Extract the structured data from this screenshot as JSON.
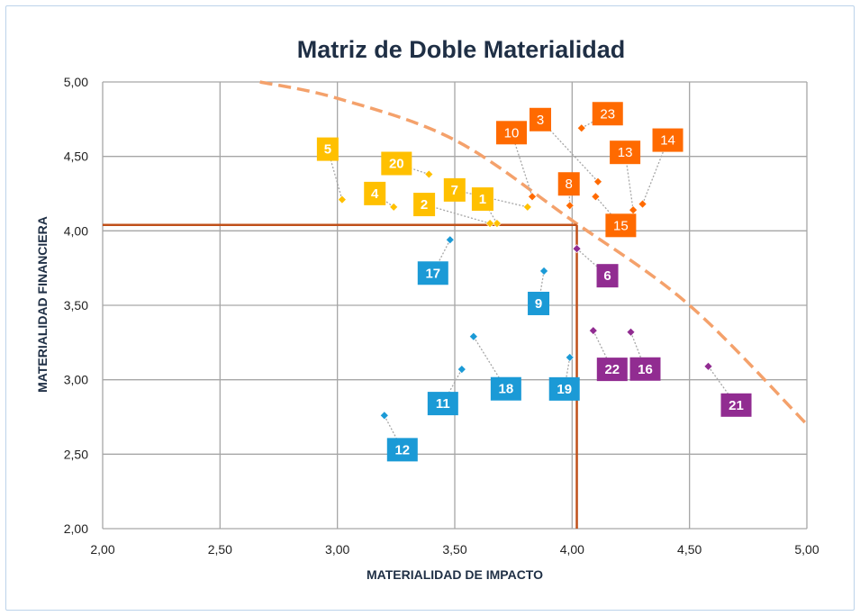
{
  "chart_data": {
    "type": "scatter",
    "title": "Matriz de Doble Materialidad",
    "xlabel": "MATERIALIDAD DE IMPACTO",
    "ylabel": "MATERIALIDAD FINANCIERA",
    "xlim": [
      2.0,
      5.0
    ],
    "ylim": [
      2.0,
      5.0
    ],
    "xticks": [
      "2,00",
      "2,50",
      "3,00",
      "3,50",
      "4,00",
      "4,50",
      "5,00"
    ],
    "yticks": [
      "2,00",
      "2,50",
      "3,00",
      "3,50",
      "4,00",
      "4,50",
      "5,00"
    ],
    "grid": true,
    "thresholds": {
      "impact": 4.02,
      "financial": 4.04
    },
    "frontier": [
      [
        2.67,
        5.0
      ],
      [
        3.0,
        4.89
      ],
      [
        3.5,
        4.61
      ],
      [
        4.0,
        4.07
      ],
      [
        4.5,
        3.5
      ],
      [
        5.0,
        2.7
      ]
    ],
    "colors": {
      "yellow": "#ffc000",
      "orange": "#ff6a00",
      "blue": "#1b9ad6",
      "purple": "#912c91",
      "threshold": "#c0501a",
      "frontier": "#f4a16b",
      "grid": "#a6a6a6",
      "leader": "#a6a6a6"
    },
    "points": [
      {
        "label": "1",
        "x": 3.68,
        "y": 4.05,
        "group": "yellow"
      },
      {
        "label": "2",
        "x": 3.65,
        "y": 4.05,
        "group": "yellow"
      },
      {
        "label": "3",
        "x": 4.11,
        "y": 4.33,
        "group": "orange"
      },
      {
        "label": "4",
        "x": 3.24,
        "y": 4.16,
        "group": "yellow"
      },
      {
        "label": "5",
        "x": 3.02,
        "y": 4.21,
        "group": "yellow"
      },
      {
        "label": "6",
        "x": 4.02,
        "y": 3.88,
        "group": "purple"
      },
      {
        "label": "7",
        "x": 3.81,
        "y": 4.16,
        "group": "yellow"
      },
      {
        "label": "8",
        "x": 3.99,
        "y": 4.17,
        "group": "orange"
      },
      {
        "label": "9",
        "x": 3.88,
        "y": 3.73,
        "group": "blue"
      },
      {
        "label": "10",
        "x": 3.83,
        "y": 4.23,
        "group": "orange"
      },
      {
        "label": "11",
        "x": 3.53,
        "y": 3.07,
        "group": "blue"
      },
      {
        "label": "12",
        "x": 3.2,
        "y": 2.76,
        "group": "blue"
      },
      {
        "label": "13",
        "x": 4.26,
        "y": 4.14,
        "group": "orange"
      },
      {
        "label": "14",
        "x": 4.3,
        "y": 4.18,
        "group": "orange"
      },
      {
        "label": "15",
        "x": 4.1,
        "y": 4.23,
        "group": "orange"
      },
      {
        "label": "16",
        "x": 4.25,
        "y": 3.32,
        "group": "purple"
      },
      {
        "label": "17",
        "x": 3.48,
        "y": 3.94,
        "group": "blue"
      },
      {
        "label": "18",
        "x": 3.58,
        "y": 3.29,
        "group": "blue"
      },
      {
        "label": "19",
        "x": 3.99,
        "y": 3.15,
        "group": "blue"
      },
      {
        "label": "20",
        "x": 3.39,
        "y": 4.38,
        "group": "yellow"
      },
      {
        "label": "21",
        "x": 4.58,
        "y": 3.09,
        "group": "purple"
      },
      {
        "label": "22",
        "x": 4.09,
        "y": 3.33,
        "group": "purple"
      },
      {
        "label": "23",
        "x": 4.04,
        "y": 4.69,
        "group": "orange"
      }
    ]
  }
}
